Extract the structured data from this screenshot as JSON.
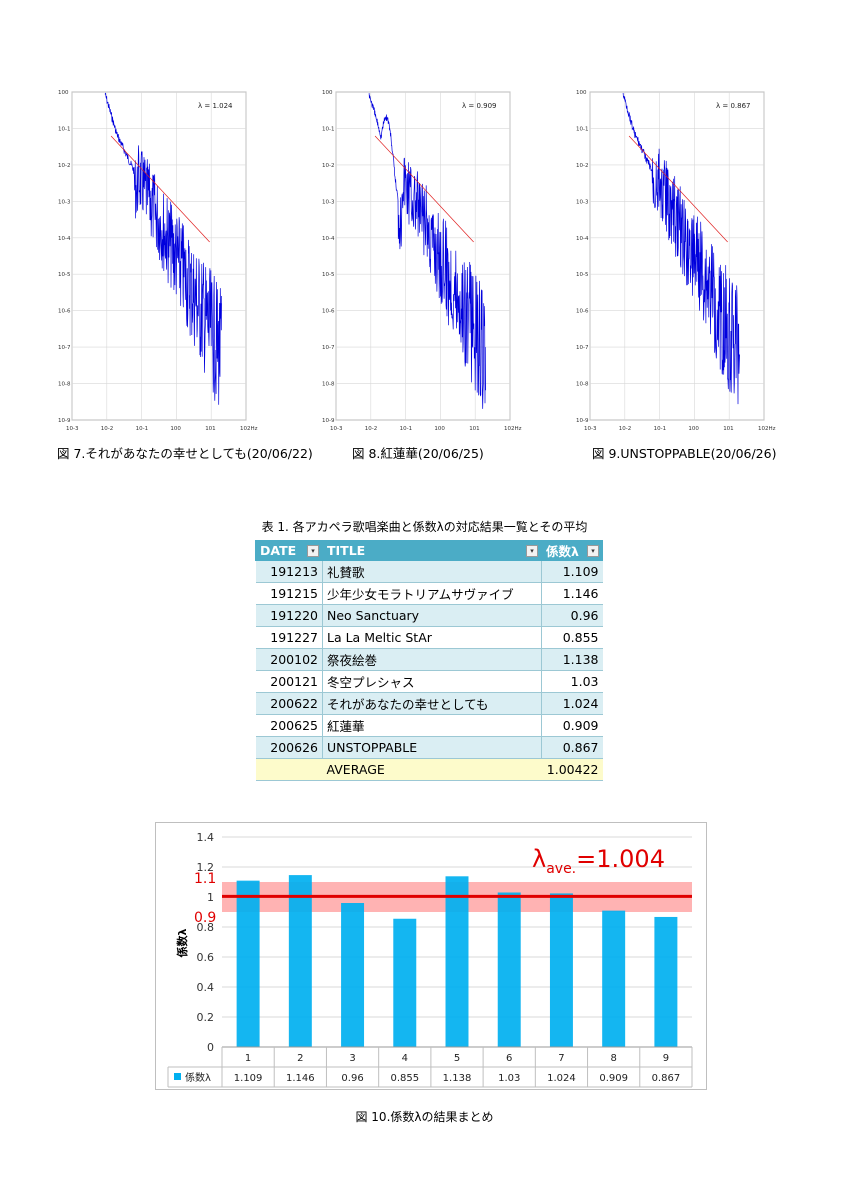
{
  "figures": [
    {
      "lambda_label": "λ = 1.024",
      "caption": "図 7.それがあなたの幸せとしても(20/06/22)"
    },
    {
      "lambda_label": "λ = 0.909",
      "caption": "図 8.紅蓮華(20/06/25)"
    },
    {
      "lambda_label": "λ = 0.867",
      "caption": "図 9.UNSTOPPABLE(20/06/26)"
    }
  ],
  "spectrum_axis": {
    "y_ticks": [
      "10^0",
      "10^-1",
      "10^-2",
      "10^-3",
      "10^-4",
      "10^-5",
      "10^-6",
      "10^-7",
      "10^-8",
      "10^-9"
    ],
    "x_ticks": [
      "10^-3",
      "10^-2",
      "10^-1",
      "10^0",
      "10^1",
      "10^2Hz"
    ]
  },
  "table": {
    "title": "表 1. 各アカペラ歌唱楽曲と係数λの対応結果一覧とその平均",
    "headers": {
      "date": "DATE",
      "title": "TITLE",
      "value": "係数λ"
    },
    "rows": [
      {
        "date": "191213",
        "title": "礼賛歌",
        "value": "1.109"
      },
      {
        "date": "191215",
        "title": "少年少女モラトリアムサヴァイブ",
        "value": "1.146"
      },
      {
        "date": "191220",
        "title": "Neo Sanctuary",
        "value": "0.96"
      },
      {
        "date": "191227",
        "title": "La La Meltic StAr",
        "value": "0.855"
      },
      {
        "date": "200102",
        "title": "祭夜絵巻",
        "value": "1.138"
      },
      {
        "date": "200121",
        "title": "冬空プレシャス",
        "value": "1.03"
      },
      {
        "date": "200622",
        "title": "それがあなたの幸せとしても",
        "value": "1.024"
      },
      {
        "date": "200625",
        "title": "紅蓮華",
        "value": "0.909"
      },
      {
        "date": "200626",
        "title": "UNSTOPPABLE",
        "value": "0.867"
      }
    ],
    "average": {
      "label": "AVERAGE",
      "value": "1.00422"
    }
  },
  "bar_caption": "図 10.係数λの結果まとめ",
  "chart_data": {
    "type": "bar",
    "title": "",
    "categories": [
      "1",
      "2",
      "3",
      "4",
      "5",
      "6",
      "7",
      "8",
      "9"
    ],
    "series": [
      {
        "name": "係数λ",
        "values": [
          1.109,
          1.146,
          0.96,
          0.855,
          1.138,
          1.03,
          1.024,
          0.909,
          0.867
        ]
      }
    ],
    "value_labels": [
      "1.109",
      "1.146",
      "0.96",
      "0.855",
      "1.138",
      "1.03",
      "1.024",
      "0.909",
      "0.867"
    ],
    "ylabel": "係数λ",
    "ylim": [
      0,
      1.4
    ],
    "yticks": [
      "0",
      "0.2",
      "0.4",
      "0.6",
      "0.8",
      "1",
      "1.2",
      "1.4"
    ],
    "average_line": 1.004,
    "band": [
      0.9,
      1.1
    ],
    "band_labels": [
      "1.1",
      "0.9"
    ],
    "annotation": {
      "prefix": "λ",
      "subscript": "ave.",
      "suffix": "=1.004"
    },
    "colors": {
      "bar": "#00b0f0",
      "line": "#e00000",
      "band": "#ff9999",
      "annotation": "#e00000"
    }
  }
}
